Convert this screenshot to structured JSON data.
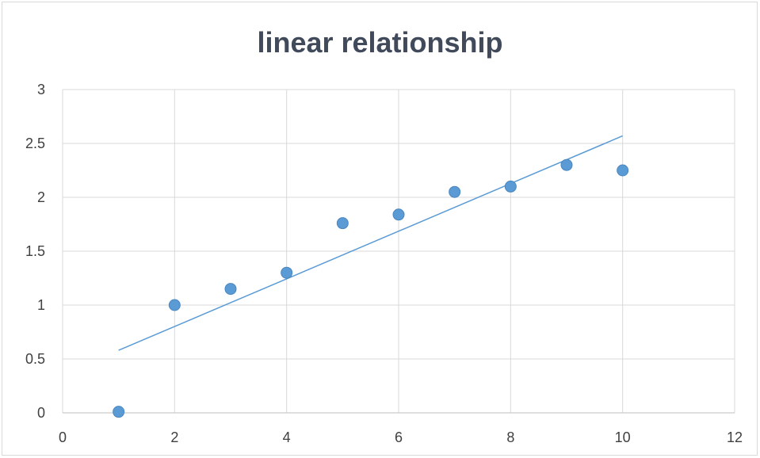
{
  "chart_data": {
    "type": "scatter",
    "title": "linear relationship",
    "xlabel": "",
    "ylabel": "",
    "xlim": [
      0,
      12
    ],
    "ylim": [
      0,
      3
    ],
    "x_ticks": [
      0,
      2,
      4,
      6,
      8,
      10,
      12
    ],
    "y_ticks": [
      0,
      0.5,
      1,
      1.5,
      2,
      2.5,
      3
    ],
    "grid": true,
    "legend": "none",
    "series": [
      {
        "x": [
          1,
          2,
          3,
          4,
          5,
          6,
          7,
          8,
          9,
          10
        ],
        "y": [
          0.01,
          1.0,
          1.15,
          1.3,
          1.76,
          1.84,
          2.05,
          2.1,
          2.3,
          2.25
        ],
        "color": "#5b9bd5"
      }
    ],
    "trendline": {
      "type": "linear",
      "x": [
        1,
        10
      ],
      "y": [
        0.58,
        2.57
      ],
      "color": "#5b9bd5"
    }
  }
}
